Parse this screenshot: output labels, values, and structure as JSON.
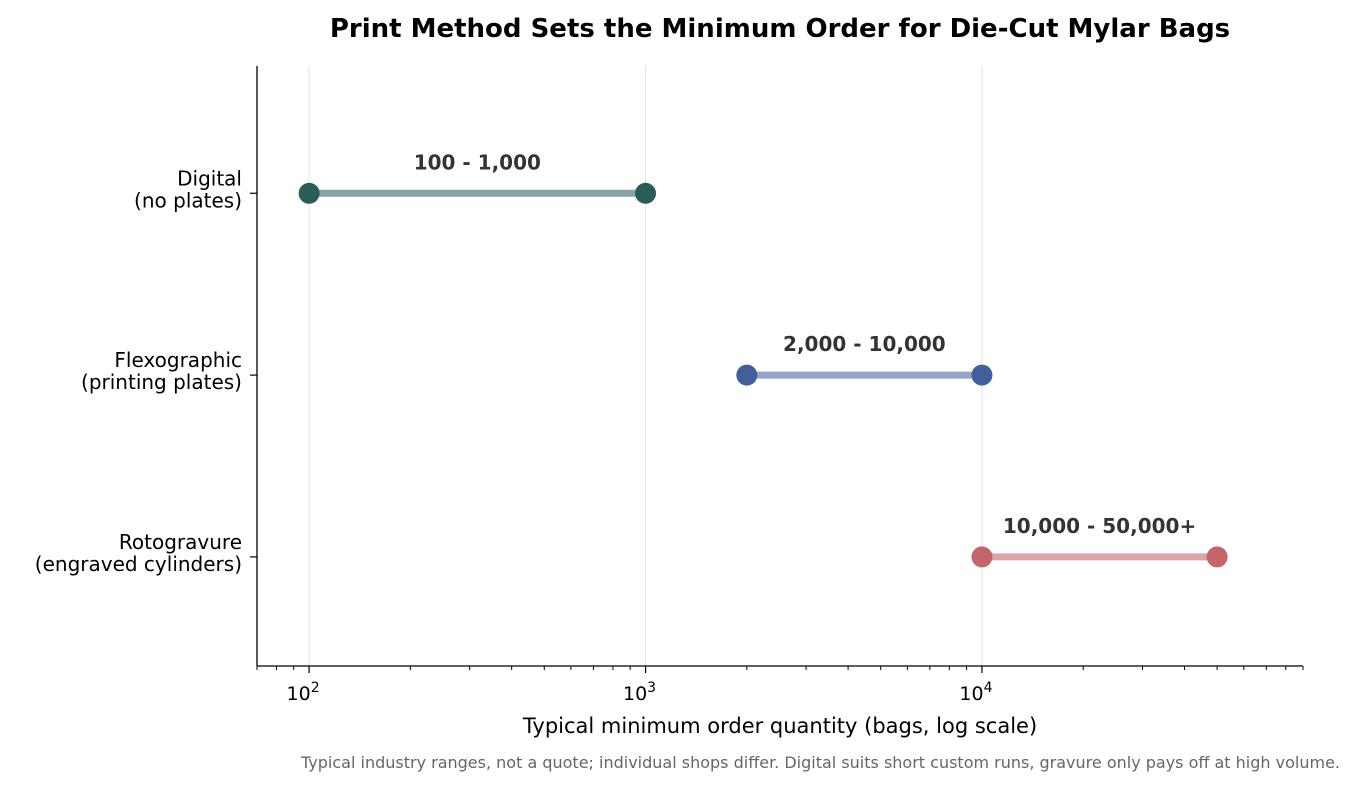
{
  "chart_data": {
    "type": "dumbbell",
    "title": "Print Method Sets the Minimum Order for Die-Cut Mylar Bags",
    "xlabel": "Typical minimum order quantity (bags, log scale)",
    "x_scale": "log",
    "xlim": [
      70,
      90000
    ],
    "x_ticks": [
      {
        "value": 100,
        "base": "10",
        "exp": "2"
      },
      {
        "value": 1000,
        "base": "10",
        "exp": "3"
      },
      {
        "value": 10000,
        "base": "10",
        "exp": "4"
      }
    ],
    "grid": "vertical at major ticks",
    "legend": "none",
    "categories": [
      {
        "line1": "Digital",
        "line2": "(no plates)",
        "min": 100,
        "max": 1000,
        "label": "100 - 1,000",
        "color": "#2a5d58",
        "line_color": "#87a5a2"
      },
      {
        "line1": "Flexographic",
        "line2": "(printing plates)",
        "min": 2000,
        "max": 10000,
        "label": "2,000 - 10,000",
        "color": "#435f99",
        "line_color": "#93a4c6"
      },
      {
        "line1": "Rotogravure",
        "line2": "(engraved cylinders)",
        "min": 10000,
        "max": 50000,
        "label": "10,000 - 50,000+",
        "color": "#c46669",
        "line_color": "#dca6a8"
      }
    ],
    "footnote": "Typical industry ranges, not a quote; individual shops differ. Digital suits short custom runs, gravure only pays off at high volume."
  }
}
